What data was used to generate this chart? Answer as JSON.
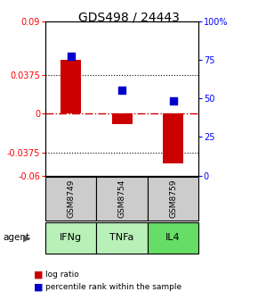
{
  "title": "GDS498 / 24443",
  "samples": [
    "GSM8749",
    "GSM8754",
    "GSM8759"
  ],
  "agents": [
    "IFNg",
    "TNFa",
    "IL4"
  ],
  "log_ratios": [
    0.052,
    -0.01,
    -0.048
  ],
  "percentile_ranks": [
    0.77,
    0.555,
    0.485
  ],
  "ylim_left": [
    -0.06,
    0.09
  ],
  "ylim_right": [
    0,
    1.0
  ],
  "yticks_left": [
    -0.06,
    -0.0375,
    0,
    0.0375,
    0.09
  ],
  "yticks_right": [
    0,
    0.25,
    0.5,
    0.75,
    1.0
  ],
  "ytick_labels_left": [
    "-0.06",
    "-0.0375",
    "0",
    "0.0375",
    "0.09"
  ],
  "ytick_labels_right": [
    "0",
    "25",
    "50",
    "75",
    "100%"
  ],
  "hline_dotted": [
    -0.0375,
    0.0375
  ],
  "hline_dashdot": 0,
  "bar_color": "#cc0000",
  "dot_color": "#0000cc",
  "agent_colors": [
    "#b8f0b8",
    "#b8f0b8",
    "#66dd66"
  ],
  "sample_bg_color": "#cccccc",
  "title_fontsize": 10,
  "bar_width": 0.4,
  "dot_size": 40,
  "legend_bar_label": "log ratio",
  "legend_dot_label": "percentile rank within the sample"
}
